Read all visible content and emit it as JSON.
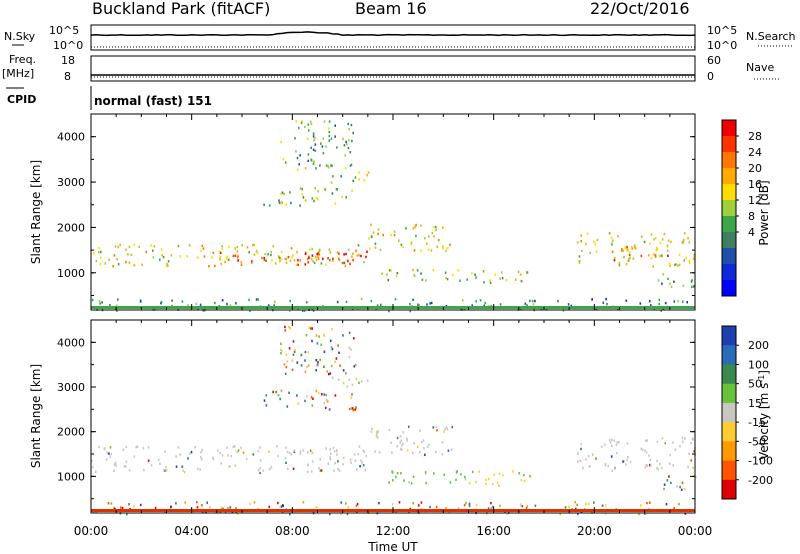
{
  "header": {
    "station": "Buckland Park (fitACF)",
    "beam": "Beam 16",
    "date": "22/Oct/2016"
  },
  "params": {
    "nsky_label": "N.Sky",
    "nsearch_label": "N.Search",
    "scale_top": "10^5",
    "scale_bottom": "10^0",
    "freq_label": "Freq.",
    "freq_unit": "[MHz]",
    "freq_ticks": [
      "18",
      "8"
    ],
    "nave_label": "Nave",
    "nave_ticks": [
      "60",
      "0"
    ],
    "cpid_label": "CPID",
    "cpid_value": "normal (fast) 151"
  },
  "chart_data": [
    {
      "type": "heatmap",
      "title": "",
      "xlabel": "Time UT",
      "ylabel": "Slant Range [km]",
      "x_ticks": [
        "00:00",
        "04:00",
        "08:00",
        "12:00",
        "16:00",
        "20:00",
        "00:00"
      ],
      "y_ticks": [
        1000,
        2000,
        3000,
        4000
      ],
      "xlim_hours": [
        0,
        24
      ],
      "ylim_km": [
        180,
        4500
      ],
      "colorbar": {
        "label": "Power [dB]",
        "ticks": [
          "28",
          "24",
          "20",
          "16",
          "12",
          "8",
          "4"
        ],
        "colors": [
          "#ee0000",
          "#ff3300",
          "#ff7700",
          "#ffaa00",
          "#ffdd00",
          "#9fcf3a",
          "#3ea64a",
          "#3f7f5f",
          "#1f4fa8",
          "#1028d8",
          "#0000ff"
        ]
      },
      "scatter_regions": [
        {
          "t0": 0.0,
          "t1": 11.0,
          "r0": 1150,
          "r1": 1650,
          "level": 6
        },
        {
          "t0": 5.0,
          "t1": 11.0,
          "r0": 1200,
          "r1": 1500,
          "level": 8
        },
        {
          "t0": 8.0,
          "t1": 11.0,
          "r0": 1250,
          "r1": 1450,
          "level": 10
        },
        {
          "t0": 11.0,
          "t1": 14.5,
          "r0": 1500,
          "r1": 2100,
          "level": 6
        },
        {
          "t0": 6.8,
          "t1": 10.5,
          "r0": 2500,
          "r1": 2900,
          "level": 5
        },
        {
          "t0": 9.5,
          "t1": 11.0,
          "r0": 3000,
          "r1": 3300,
          "level": 5
        },
        {
          "t0": 7.5,
          "t1": 10.5,
          "r0": 3300,
          "r1": 4400,
          "level": 4
        },
        {
          "t0": 11.5,
          "t1": 16.5,
          "r0": 850,
          "r1": 1100,
          "level": 5
        },
        {
          "t0": 15.5,
          "t1": 17.5,
          "r0": 800,
          "r1": 1100,
          "level": 6
        },
        {
          "t0": 19.3,
          "t1": 24.0,
          "r0": 1150,
          "r1": 1900,
          "level": 6
        },
        {
          "t0": 20.5,
          "t1": 23.0,
          "r0": 1300,
          "r1": 1600,
          "level": 8
        },
        {
          "t0": 22.5,
          "t1": 24.0,
          "r0": 700,
          "r1": 1050,
          "level": 4
        },
        {
          "t0": 0.0,
          "t1": 24.0,
          "r0": 180,
          "r1": 450,
          "level": 3
        }
      ]
    },
    {
      "type": "heatmap",
      "title": "",
      "xlabel": "Time UT",
      "ylabel": "Slant Range [km]",
      "x_ticks": [
        "00:00",
        "04:00",
        "08:00",
        "12:00",
        "16:00",
        "20:00",
        "00:00"
      ],
      "y_ticks": [
        1000,
        2000,
        3000,
        4000
      ],
      "xlim_hours": [
        0,
        24
      ],
      "ylim_km": [
        180,
        4500
      ],
      "colorbar": {
        "label": "Velocity [m s^-1]",
        "ticks": [
          "200",
          "100",
          "50",
          "15",
          "-15",
          "-50",
          "-100",
          "-200"
        ],
        "colors": [
          "#1f3faf",
          "#2a6ab8",
          "#3a8a4f",
          "#66c23a",
          "#c8c8c0",
          "#ffcc33",
          "#ff9900",
          "#ff5500",
          "#dd0000"
        ]
      },
      "scatter_regions": [
        {
          "t0": 0.0,
          "t1": 11.0,
          "r0": 1100,
          "r1": 1700,
          "cls": "grey"
        },
        {
          "t0": 11.0,
          "t1": 14.5,
          "r0": 1500,
          "r1": 2150,
          "cls": "grey"
        },
        {
          "t0": 6.8,
          "t1": 10.5,
          "r0": 2500,
          "r1": 2950,
          "cls": "mixed"
        },
        {
          "t0": 9.5,
          "t1": 11.0,
          "r0": 3000,
          "r1": 3300,
          "cls": "grey"
        },
        {
          "t0": 7.5,
          "t1": 10.5,
          "r0": 3300,
          "r1": 4400,
          "cls": "mixed"
        },
        {
          "t0": 11.5,
          "t1": 15.0,
          "r0": 850,
          "r1": 1150,
          "cls": "green"
        },
        {
          "t0": 15.0,
          "t1": 17.5,
          "r0": 800,
          "r1": 1150,
          "cls": "orange"
        },
        {
          "t0": 19.3,
          "t1": 24.0,
          "r0": 1150,
          "r1": 1900,
          "cls": "grey"
        },
        {
          "t0": 22.5,
          "t1": 24.0,
          "r0": 700,
          "r1": 1050,
          "cls": "mixed"
        },
        {
          "t0": 0.0,
          "t1": 24.0,
          "r0": 180,
          "r1": 450,
          "cls": "mixed"
        }
      ]
    }
  ],
  "colors": {
    "axis": "#000000",
    "background": "#ffffff"
  }
}
